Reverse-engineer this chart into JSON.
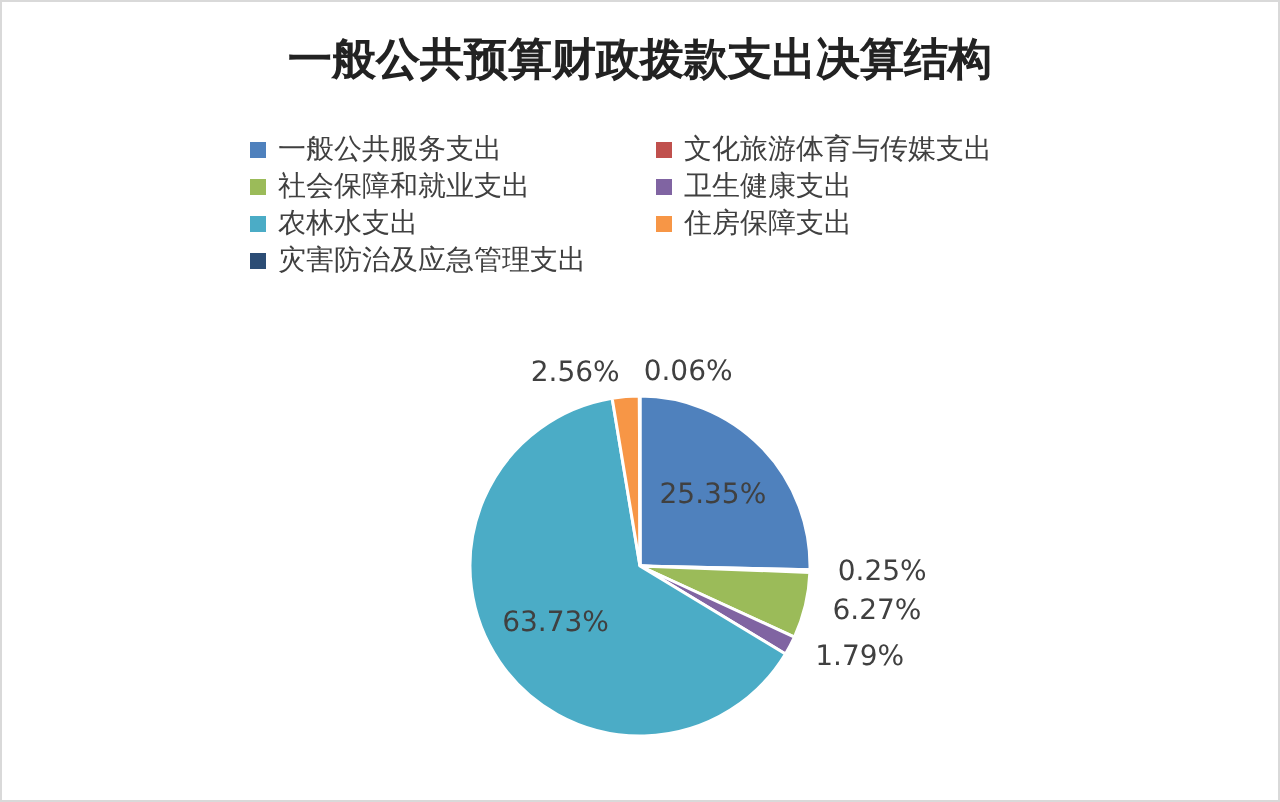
{
  "chart_data": {
    "type": "pie",
    "title": "一般公共预算财政拨款支出决算结构",
    "categories": [
      "一般公共服务支出",
      "文化旅游体育与传媒支出",
      "社会保障和就业支出",
      "卫生健康支出",
      "农林水支出",
      "住房保障支出",
      "灾害防治及应急管理支出"
    ],
    "values": [
      25.35,
      0.25,
      6.27,
      1.79,
      63.73,
      2.56,
      0.06
    ],
    "value_labels": [
      "25.35%",
      "0.25%",
      "6.27%",
      "1.79%",
      "63.73%",
      "2.56%",
      "0.06%"
    ],
    "colors": [
      "#4f81bd",
      "#c0504d",
      "#9bbb59",
      "#8064a2",
      "#4bacc6",
      "#f79646",
      "#2c4d75"
    ],
    "legend": "top"
  }
}
